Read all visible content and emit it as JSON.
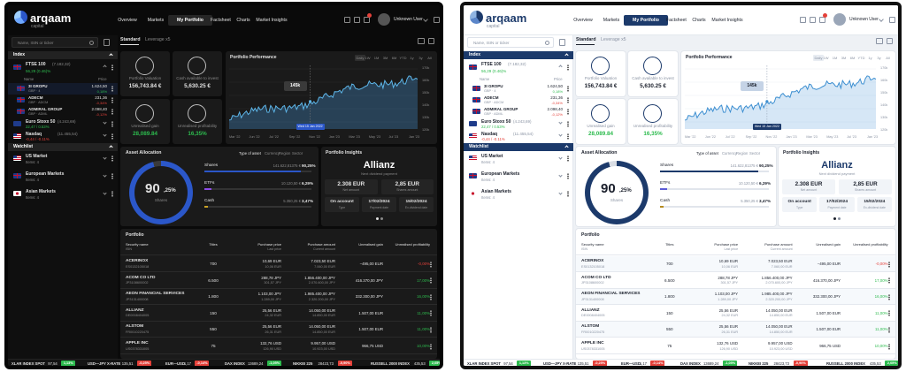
{
  "brand": {
    "name": "arqaam",
    "tagline": "capital"
  },
  "nav": {
    "items": [
      "Overview",
      "Markets",
      "My Portfolio",
      "Factsheet",
      "Charts",
      "Market Insights"
    ],
    "active": "My Portfolio"
  },
  "user": {
    "name": "Unknown User",
    "badge_count": "9"
  },
  "search": {
    "placeholder": "Name, ISIN or ticker"
  },
  "tabs": [
    "Standard",
    "Leverage x5"
  ],
  "sidebar": {
    "index_header": "Index",
    "items": [
      {
        "flag": "uk",
        "name": "FTSE 100",
        "name_suffix": "(7.182,32)",
        "change": "56,29 (0.46)%",
        "change_dir": "up"
      },
      {
        "flag": "eu",
        "name": "Euro Stoxx 50",
        "name_suffix": "(4.243,69)",
        "change": "22,47 / 0.53%",
        "change_dir": "up"
      },
      {
        "flag": "us",
        "name": "Nasdaq",
        "name_suffix": "(11.455,54)",
        "change": "-0,44 / -0.11%",
        "change_dir": "down"
      }
    ],
    "sub_header": {
      "name": "Name",
      "price": "Price"
    },
    "sub_items": [
      {
        "flag": "uk",
        "name": "3I GROPU",
        "sub": "GBP · 4",
        "price": "1.624,50",
        "change": "0,18%",
        "change_dir": "up"
      },
      {
        "flag": "uk",
        "name": "ADECM",
        "sub": "GBP · ADCM",
        "price": "231,36",
        "change": "-0,34%",
        "change_dir": "down"
      },
      {
        "flag": "uk",
        "name": "ADMIRAL GROUP",
        "sub": "GBP · ADML",
        "price": "2.098,40",
        "change": "-0,12%",
        "change_dir": "down"
      }
    ],
    "watchlist_header": "Watchlist",
    "watch_items": [
      {
        "flag": "us",
        "name": "US Market",
        "sub": "Items: 4"
      },
      {
        "flag": "uk",
        "name": "European Markets",
        "sub": "Items: 4"
      },
      {
        "flag": "jp",
        "name": "Asian Markets",
        "sub": "Items: 4"
      }
    ]
  },
  "kpis": [
    {
      "icon": "wallet-icon",
      "label": "Portfolio Valuation",
      "value": "156,743.84 €",
      "color": "default"
    },
    {
      "icon": "cash-hand-icon",
      "label": "Cash available to invest",
      "value": "5,630.25 €",
      "color": "default"
    },
    {
      "icon": "pie-icon",
      "label": "Unrealised gain",
      "value": "28,089.84",
      "color": "green"
    },
    {
      "icon": "percent-icon",
      "label": "Unrealised profitability",
      "value": "16,35%",
      "color": "green"
    }
  ],
  "performance": {
    "title": "Portfolio Performance",
    "ranges": [
      "Daily",
      "1W",
      "1M",
      "3M",
      "6M",
      "YTD",
      "1y",
      "3y",
      "All"
    ],
    "tooltip_value": "145k",
    "tooltip_date": "Wed 15 Jan 2022",
    "x_labels": [
      "Mar '22",
      "Jun '22",
      "Jul '22",
      "Sep '22",
      "Nov '22",
      "Jan '23",
      "Mar '23",
      "May '23",
      "Jul '23",
      "Jan '23"
    ],
    "y_labels": [
      "170k",
      "160k",
      "150k",
      "140k",
      "130k",
      "120k"
    ]
  },
  "allocation": {
    "title": "Asset Allocation",
    "filters": [
      "Type of asset",
      "Currency",
      "Region",
      "Sector"
    ],
    "center_value": "90",
    "center_decimals": ",25%",
    "center_label": "Shares",
    "rows": [
      {
        "label": "Shares",
        "amount": "141.622,81375 €",
        "pct": "90,25%",
        "fill": 0.9025
      },
      {
        "label": "ETFs",
        "amount": "10.120,50 €",
        "pct": "6,29%",
        "fill": 0.0629
      },
      {
        "label": "Cash",
        "amount": "5.350,25 €",
        "pct": "3,47%",
        "fill": 0.0347
      }
    ]
  },
  "insights": {
    "title": "Portfolio Insights",
    "company": "Allianz",
    "subtitle": "Next dividend payment",
    "amount": "2.308 EUR",
    "amount_label": "Net amount",
    "per_share": "2,85 EUR",
    "per_share_label": "Shares amount",
    "type": "On account",
    "type_label": "Type",
    "pay_date": "17/02/2024",
    "pay_label": "Payment date",
    "ex_date": "15/02/2024",
    "ex_label": "Ex-dividend date"
  },
  "portfolio": {
    "title": "Portfolio",
    "headers": [
      "Security name",
      "Titles",
      "Purchase price",
      "Purchase amount",
      "Unrealised gain",
      "Unrealised profitability"
    ],
    "sub_headers": [
      "ISIN",
      "",
      "Last price",
      "Current amount",
      "",
      ""
    ],
    "rows": [
      {
        "name": "ACERINOX",
        "isin": "ES0132105018",
        "titles": "700",
        "pp": "10,69 EUR",
        "lp": "10,06 EUR",
        "pa": "7.023,50 EUR",
        "ca": "7.060,00 EUR",
        "gain": "−495,00 EUR",
        "prof": "-0,00%",
        "dir": "down"
      },
      {
        "name": "ACOM CO LTD",
        "isin": "JP3108600002",
        "titles": "6.500",
        "pp": "288,78 JPY",
        "lp": "301,57 JPY",
        "pa": "1.856.400,00 JPY",
        "ca": "2.070.600,00 JPY",
        "gain": "416.370,00 JPY",
        "prof": "17,00%",
        "dir": "up"
      },
      {
        "name": "AEON FINANCIAL SERVICES",
        "isin": "JP3131400008",
        "titles": "1.800",
        "pp": "1.103,00 JPY",
        "lp": "1.289,00 JPY",
        "pa": "1.985.400,00 JPY",
        "ca": "2.320.200,00 JPY",
        "gain": "332.300,00 JPY",
        "prof": "16,00%",
        "dir": "up"
      },
      {
        "name": "ALLIANZ",
        "isin": "DE0008404005",
        "titles": "150",
        "pp": "25,56 EUR",
        "lp": "24,32 EUR",
        "pa": "14.050,00 EUR",
        "ca": "14.850,00 EUR",
        "gain": "1.507,00 EUR",
        "prof": "11,00%",
        "dir": "up"
      },
      {
        "name": "ALSTOM",
        "isin": "FR0010220475",
        "titles": "550",
        "pp": "25,56 EUR",
        "lp": "26,31 EUR",
        "pa": "14.050,00 EUR",
        "ca": "14.850,00 EUR",
        "gain": "1.507,00 EUR",
        "prof": "11,00%",
        "dir": "up"
      },
      {
        "name": "APPLE INC",
        "isin": "US0378331005",
        "titles": "75",
        "pp": "132,76 USD",
        "lp": "126,90 USD",
        "pa": "9.957,00 USD",
        "ca": "10.923,00 USD",
        "gain": "966,75 USD",
        "prof": "10,00%",
        "dir": "up"
      }
    ]
  },
  "ticker": [
    {
      "name": "XLAR INDEX SPOT",
      "val": "97,54",
      "chg": "1,13%",
      "dir": "up"
    },
    {
      "name": "USD—JPY X-RATE",
      "val": "135,51",
      "chg": "-0,25%",
      "dir": "down"
    },
    {
      "name": "EUR—USD",
      "val": "1,17",
      "chg": "-0,14%",
      "dir": "down"
    },
    {
      "name": "DAX INDEX",
      "val": "13689,24",
      "chg": "-1,05%",
      "dir": "up"
    },
    {
      "name": "NIKKEI 225",
      "val": "28423,73",
      "chg": "-0,90%",
      "dir": "down"
    },
    {
      "name": "RUSSELL 2000 INDEX",
      "val": "435,53",
      "chg": "2,05%",
      "dir": "up"
    }
  ],
  "colors": {
    "accent_dark": "#2b57c9",
    "accent_light": "#1c3a6b",
    "positive": "#2dbb4e",
    "negative": "#e5413a"
  }
}
